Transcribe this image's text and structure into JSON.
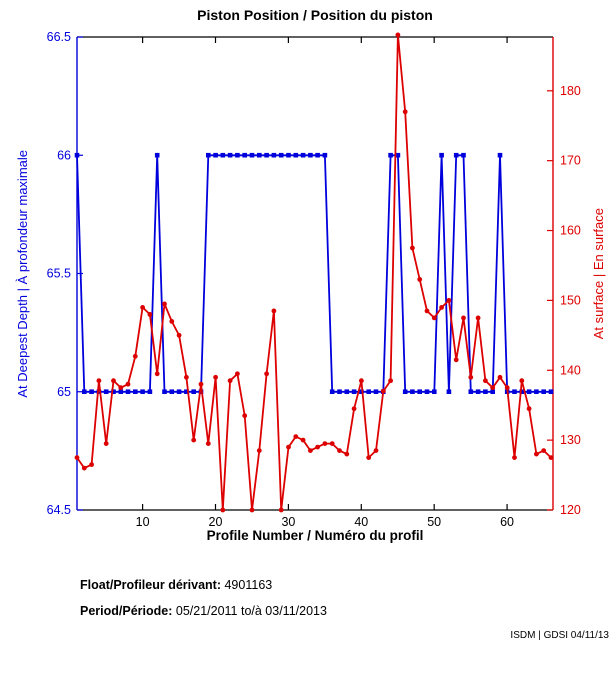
{
  "title": "Piston Position / Position du piston",
  "xlabel": "Profile Number / Numéro du profil",
  "ylabel_left": "At Deepest Depth | À profondeur maximale",
  "ylabel_right": "At surface | En surface",
  "colors": {
    "left_axis": "#0000DD",
    "right_axis": "#DD0000",
    "frame": "#000000",
    "background": "#FFFFFF"
  },
  "annotations": {
    "float_label": "Float/Profileur dérivant:",
    "float_value": "4901163",
    "period_label": "Period/Période:",
    "period_value": "05/21/2011  to/à  03/11/2013",
    "credit": "ISDM | GDSI 04/11/13"
  },
  "chart_data": {
    "type": "line",
    "title": "Piston Position / Position du piston",
    "xlabel": "Profile Number / Numéro du profil",
    "x_start": 1,
    "x": [
      1,
      2,
      3,
      4,
      5,
      6,
      7,
      8,
      9,
      10,
      11,
      12,
      13,
      14,
      15,
      16,
      17,
      18,
      19,
      20,
      21,
      22,
      23,
      24,
      25,
      26,
      27,
      28,
      29,
      30,
      31,
      32,
      33,
      34,
      35,
      36,
      37,
      38,
      39,
      40,
      41,
      42,
      43,
      44,
      45,
      46,
      47,
      48,
      49,
      50,
      51,
      52,
      53,
      54,
      55,
      56,
      57,
      58,
      59,
      60,
      61,
      62,
      63,
      64,
      65,
      66
    ],
    "xlim": [
      1,
      66.3
    ],
    "xticks": [
      10,
      20,
      30,
      40,
      50,
      60
    ],
    "grid": false,
    "legend": false,
    "series": [
      {
        "name": "At Deepest Depth | À profondeur maximale",
        "axis": "left",
        "color": "#0000DD",
        "marker": "square",
        "ylim": [
          64.5,
          66.5
        ],
        "yticks": [
          64.5,
          65,
          65.5,
          66,
          66.5
        ],
        "values": [
          66,
          65,
          65,
          65,
          65,
          65,
          65,
          65,
          65,
          65,
          65,
          66,
          65,
          65,
          65,
          65,
          65,
          65,
          66,
          66,
          66,
          66,
          66,
          66,
          66,
          66,
          66,
          66,
          66,
          66,
          66,
          66,
          66,
          66,
          66,
          65,
          65,
          65,
          65,
          65,
          65,
          65,
          65,
          66,
          66,
          65,
          65,
          65,
          65,
          65,
          66,
          65,
          66,
          66,
          65,
          65,
          65,
          65,
          66,
          65,
          65,
          65,
          65,
          65,
          65,
          65
        ]
      },
      {
        "name": "At surface | En surface",
        "axis": "right",
        "color": "#DD0000",
        "marker": "circle",
        "ylim": [
          120,
          187.7
        ],
        "yticks": [
          120,
          130,
          140,
          150,
          160,
          170,
          180
        ],
        "values": [
          127.5,
          126,
          126.5,
          138.5,
          129.5,
          138.5,
          137.5,
          138,
          142,
          149,
          148,
          139.5,
          149.5,
          147,
          145,
          139,
          130,
          138,
          129.5,
          139,
          120,
          138.5,
          139.5,
          133.5,
          120,
          128.5,
          139.5,
          148.5,
          120,
          129,
          130.5,
          130,
          128.5,
          129,
          129.5,
          129.5,
          128.5,
          128,
          134.5,
          138.5,
          127.5,
          128.5,
          137,
          138.5,
          188,
          177,
          157.5,
          153,
          148.5,
          147.5,
          149,
          150,
          141.5,
          147.5,
          139,
          147.5,
          138.5,
          137.5,
          139,
          137.5,
          127.5,
          138.5,
          134.5,
          128,
          128.5,
          127.5
        ]
      }
    ]
  }
}
